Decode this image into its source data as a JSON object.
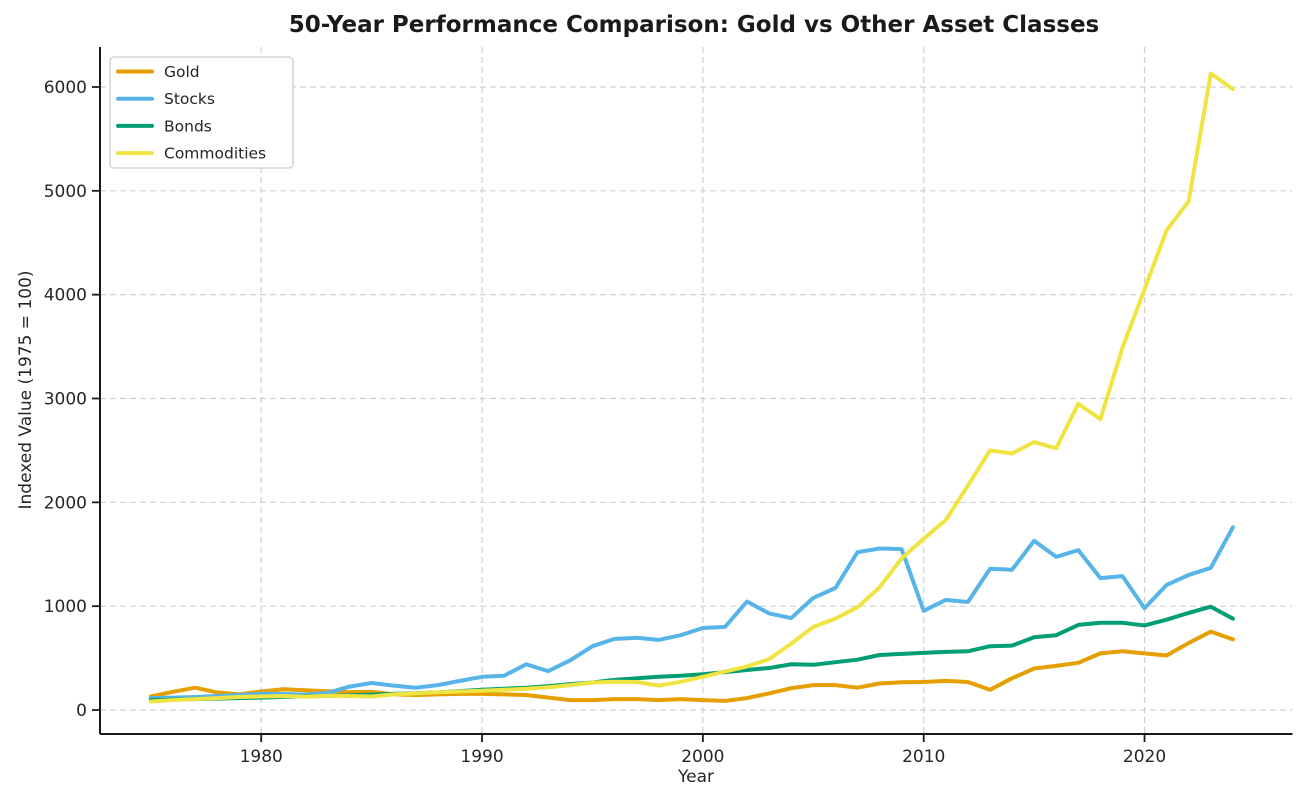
{
  "chart_data": {
    "type": "line",
    "title": "50-Year Performance Comparison: Gold vs Other Asset Classes",
    "xlabel": "Year",
    "ylabel": "Indexed Value (1975 = 100)",
    "grid": true,
    "legend_position": "upper left",
    "xlim": [
      1972.7,
      2026.7
    ],
    "ylim": [
      -231,
      6385
    ],
    "xticks": [
      1980,
      1990,
      2000,
      2010,
      2020
    ],
    "yticks": [
      0,
      1000,
      2000,
      3000,
      4000,
      5000,
      6000
    ],
    "x": [
      1975,
      1976,
      1977,
      1978,
      1979,
      1980,
      1981,
      1982,
      1983,
      1984,
      1985,
      1986,
      1987,
      1988,
      1989,
      1990,
      1991,
      1992,
      1993,
      1994,
      1995,
      1996,
      1997,
      1998,
      1999,
      2000,
      2001,
      2002,
      2003,
      2004,
      2005,
      2006,
      2007,
      2008,
      2009,
      2010,
      2011,
      2012,
      2013,
      2014,
      2015,
      2016,
      2017,
      2018,
      2019,
      2020,
      2021,
      2022,
      2023,
      2024
    ],
    "series": [
      {
        "name": "Gold",
        "color": "#E69F00",
        "values": [
          130,
          175,
          215,
          170,
          150,
          178,
          200,
          190,
          180,
          172,
          175,
          150,
          145,
          150,
          155,
          155,
          150,
          145,
          120,
          95,
          95,
          105,
          105,
          95,
          105,
          95,
          88,
          115,
          160,
          210,
          240,
          240,
          215,
          255,
          268,
          270,
          280,
          270,
          195,
          305,
          400,
          425,
          455,
          545,
          565,
          545,
          525,
          645,
          755,
          680
        ]
      },
      {
        "name": "Stocks",
        "color": "#56B4E9",
        "values": [
          115,
          120,
          125,
          135,
          145,
          155,
          155,
          148,
          165,
          225,
          260,
          235,
          215,
          240,
          280,
          320,
          330,
          440,
          375,
          480,
          615,
          685,
          695,
          675,
          720,
          790,
          800,
          1045,
          930,
          885,
          1080,
          1175,
          1520,
          1555,
          1550,
          955,
          1060,
          1040,
          1360,
          1350,
          1630,
          1475,
          1540,
          1270,
          1290,
          980,
          1205,
          1300,
          1370,
          1760
        ]
      },
      {
        "name": "Bonds",
        "color": "#009E73",
        "values": [
          95,
          100,
          105,
          110,
          116,
          120,
          126,
          131,
          136,
          142,
          148,
          155,
          162,
          170,
          182,
          195,
          205,
          215,
          230,
          250,
          265,
          290,
          305,
          320,
          330,
          345,
          365,
          385,
          405,
          440,
          435,
          460,
          485,
          530,
          540,
          550,
          560,
          565,
          615,
          620,
          700,
          720,
          820,
          840,
          840,
          815,
          870,
          935,
          995,
          880
        ]
      },
      {
        "name": "Commodities",
        "color": "#F0E442",
        "values": [
          82,
          95,
          105,
          115,
          125,
          130,
          135,
          128,
          138,
          135,
          130,
          150,
          160,
          170,
          178,
          185,
          195,
          205,
          220,
          240,
          265,
          272,
          270,
          235,
          272,
          320,
          370,
          420,
          490,
          640,
          800,
          880,
          990,
          1180,
          1460,
          1650,
          1830,
          2160,
          2500,
          2470,
          2580,
          2520,
          2950,
          2800,
          3490,
          4050,
          4620,
          4900,
          6130,
          5980
        ]
      }
    ]
  }
}
